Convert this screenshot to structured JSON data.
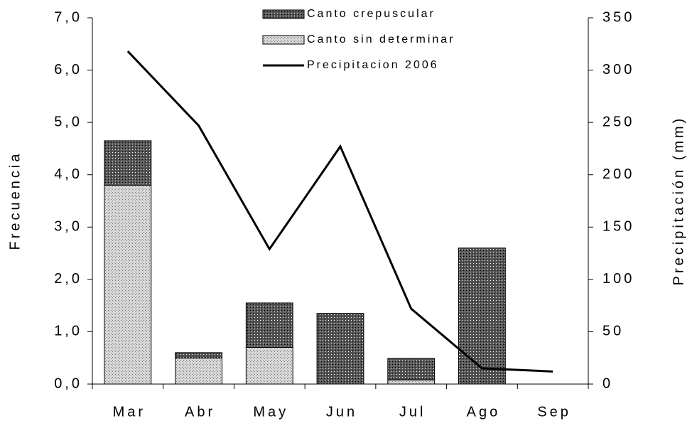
{
  "chart_data": {
    "type": "bar",
    "y_label": "Frecuencia",
    "y2_label": "Precipitación (mm)",
    "categories": [
      "Mar",
      "Abr",
      "May",
      "Jun",
      "Jul",
      "Ago",
      "Sep"
    ],
    "series": [
      {
        "name": "Canto crepuscular",
        "type": "bar",
        "color": "#555555",
        "values": [
          0.85,
          0.1,
          0.85,
          1.35,
          0.41,
          2.6,
          0
        ]
      },
      {
        "name": "Canto sin determinar",
        "type": "bar",
        "color": "#d8d8d8",
        "values": [
          3.8,
          0.5,
          0.7,
          0,
          0.08,
          0,
          0
        ]
      },
      {
        "name": "Precipitacion 2006",
        "type": "line",
        "axis": "y2",
        "color": "#000000",
        "values": [
          318,
          247,
          129,
          227,
          72,
          15,
          12
        ]
      }
    ],
    "stacked": true,
    "ylim": [
      0,
      7
    ],
    "yticks": [
      {
        "value": 0,
        "label": "0,0"
      },
      {
        "value": 1,
        "label": "1,0"
      },
      {
        "value": 2,
        "label": "2,0"
      },
      {
        "value": 3,
        "label": "3,0"
      },
      {
        "value": 4,
        "label": "4,0"
      },
      {
        "value": 5,
        "label": "5,0"
      },
      {
        "value": 6,
        "label": "6,0"
      },
      {
        "value": 7,
        "label": "7,0"
      }
    ],
    "y2lim": [
      0,
      350
    ],
    "y2ticks": [
      0,
      50,
      100,
      150,
      200,
      250,
      300,
      350
    ],
    "grid": false
  }
}
